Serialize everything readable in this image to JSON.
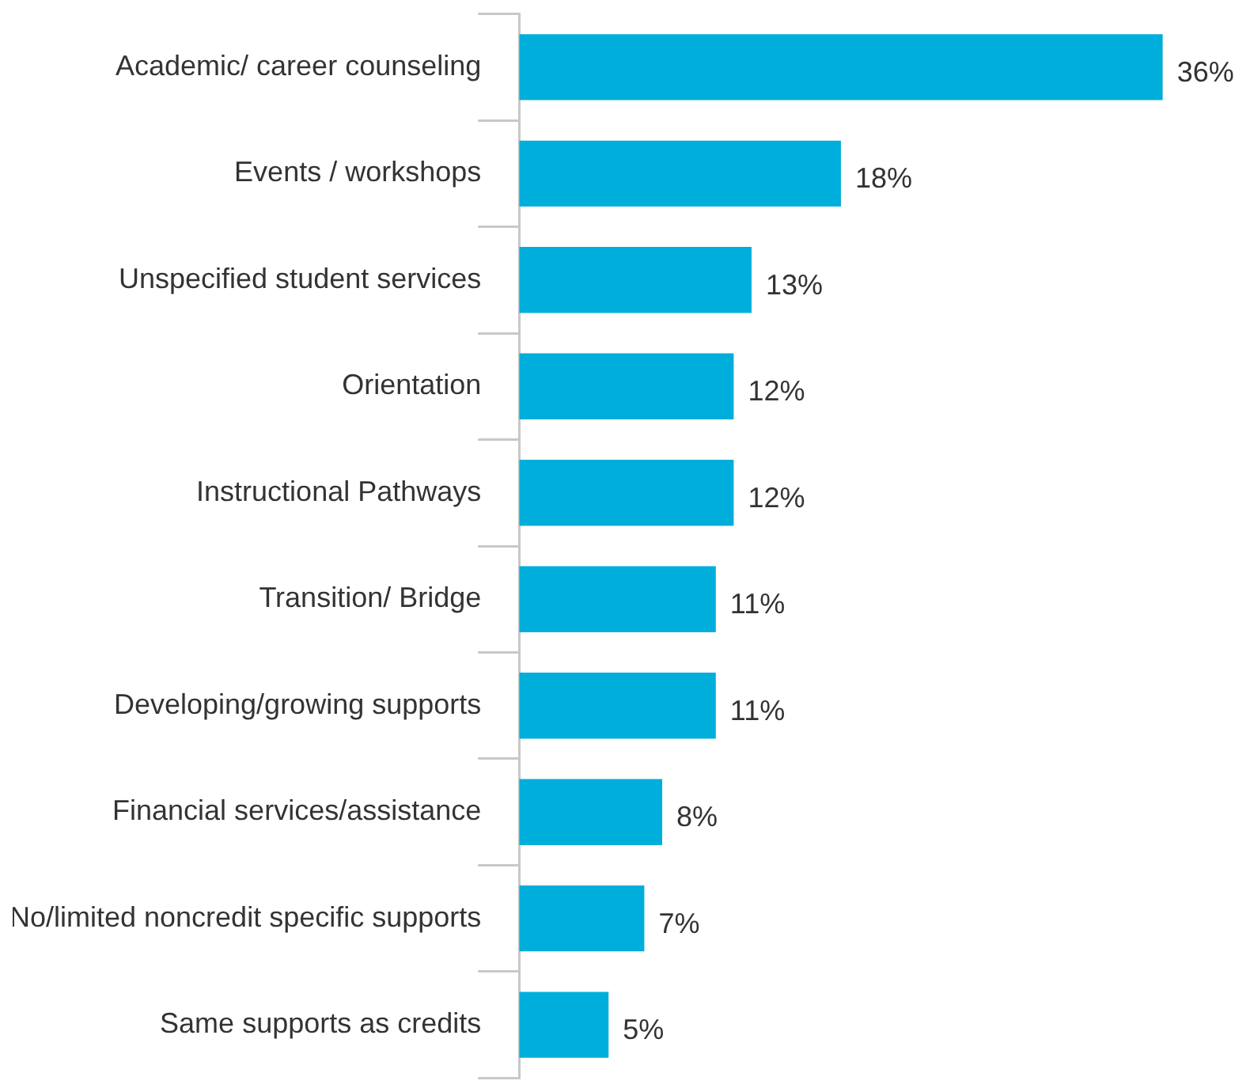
{
  "chart_data": {
    "type": "bar",
    "orientation": "horizontal",
    "categories": [
      "Academic/ career counseling",
      "Events / workshops",
      "Unspecified student services",
      "Orientation",
      "Instructional Pathways",
      "Transition/ Bridge",
      "Developing/growing supports",
      "Financial services/assistance",
      "No/limited noncredit specific supports",
      "Same supports as credits"
    ],
    "values": [
      36,
      18,
      13,
      12,
      12,
      11,
      11,
      8,
      7,
      5
    ],
    "value_labels": [
      "36%",
      "18%",
      "13%",
      "12%",
      "12%",
      "11%",
      "11%",
      "8%",
      "7%",
      "5%"
    ],
    "color": "#00aedb",
    "legend": false
  }
}
